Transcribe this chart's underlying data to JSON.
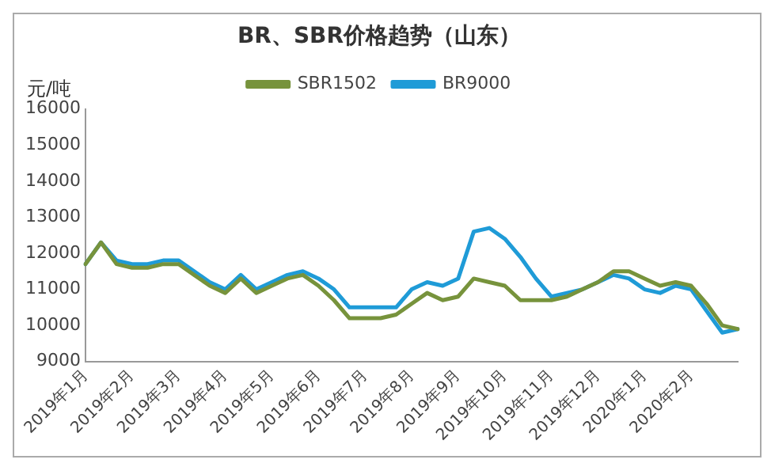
{
  "chart_data": {
    "type": "line",
    "title": "BR、SBR价格趋势（山东）",
    "ylabel": "元/吨",
    "legend": "top",
    "marker": "none",
    "line_style": "solid",
    "grid": false,
    "categories": [
      "2019年1月",
      null,
      null,
      "2019年2月",
      null,
      null,
      "2019年3月",
      null,
      null,
      "2019年4月",
      null,
      null,
      "2019年5月",
      null,
      null,
      "2019年6月",
      null,
      null,
      "2019年7月",
      null,
      null,
      "2019年8月",
      null,
      null,
      "2019年9月",
      null,
      null,
      "2019年10月",
      null,
      null,
      "2019年11月",
      null,
      null,
      "2019年12月",
      null,
      null,
      "2020年1月",
      null,
      null,
      "2020年2月",
      null,
      null,
      null
    ],
    "ylim": [
      9000,
      16000
    ],
    "yticks": [
      9000,
      10000,
      11000,
      12000,
      13000,
      14000,
      15000,
      16000
    ],
    "series": [
      {
        "name": "SBR1502",
        "color": "#77933c",
        "values": [
          11700,
          12300,
          11700,
          11600,
          11600,
          11700,
          11700,
          11400,
          11100,
          10900,
          11300,
          10900,
          11100,
          11300,
          11400,
          11100,
          10700,
          10200,
          10200,
          10200,
          10300,
          10600,
          10900,
          10700,
          10800,
          11300,
          11200,
          11100,
          10700,
          10700,
          10700,
          10800,
          11000,
          11200,
          11500,
          11500,
          11300,
          11100,
          11200,
          11100,
          10600,
          10000,
          9900
        ]
      },
      {
        "name": "BR9000",
        "color": "#1f9bd7",
        "values": [
          11700,
          12300,
          11800,
          11700,
          11700,
          11800,
          11800,
          11500,
          11200,
          11000,
          11400,
          11000,
          11200,
          11400,
          11500,
          11300,
          11000,
          10500,
          10500,
          10500,
          10500,
          11000,
          11200,
          11100,
          11300,
          12600,
          12700,
          12400,
          11900,
          11300,
          10800,
          10900,
          11000,
          11200,
          11400,
          11300,
          11000,
          10900,
          11100,
          11000,
          10400,
          9800,
          9900
        ]
      }
    ]
  }
}
